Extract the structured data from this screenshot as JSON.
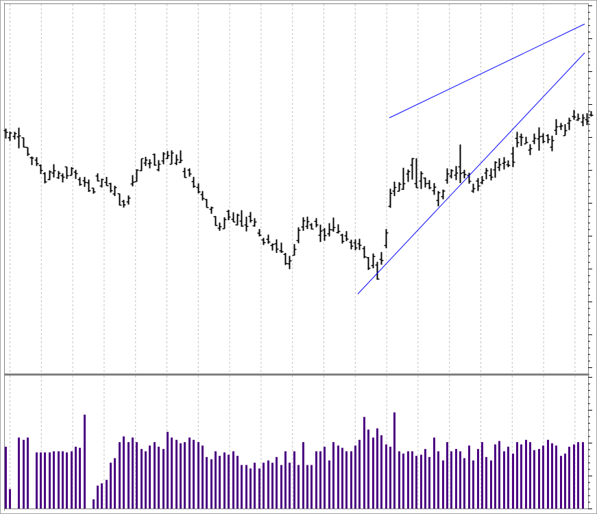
{
  "chart_data": [
    {
      "type": "ohlc",
      "title": "",
      "xlabel": "",
      "ylabel": "",
      "ylim": [
        0,
        100
      ],
      "grid": "vertical dashed",
      "colors": {
        "bars": "#000000",
        "trendlines": "#0000ff",
        "grid": "#c0c0c0",
        "frame": "#808080"
      },
      "bars": [
        [
          58.7,
          55.3,
          58.0,
          57.4
        ],
        [
          57.7,
          54.5,
          55.6,
          57.2
        ],
        [
          57.6,
          55.0,
          56.0,
          57.0
        ],
        [
          59.0,
          52.0,
          55.9,
          56.2
        ],
        [
          55.6,
          52.3,
          55.6,
          52.4
        ],
        [
          52.3,
          49.4,
          52.3,
          50.0
        ],
        [
          49.2,
          46.3,
          48.8,
          48.7
        ],
        [
          49.0,
          46.0,
          48.0,
          46.8
        ],
        [
          46.5,
          43.3,
          46.2,
          44.5
        ],
        [
          43.9,
          40.1,
          43.4,
          40.6
        ],
        [
          44.5,
          41.2,
          41.4,
          44.0
        ],
        [
          46.6,
          42.1,
          43.6,
          44.4
        ],
        [
          44.3,
          41.6,
          42.0,
          43.5
        ],
        [
          43.5,
          40.4,
          42.7,
          42.2
        ],
        [
          45.7,
          41.6,
          45.7,
          42.7
        ],
        [
          45.6,
          42.8,
          42.8,
          45.2
        ],
        [
          44.7,
          41.6,
          43.9,
          43.4
        ],
        [
          42.2,
          39.3,
          41.4,
          39.7
        ],
        [
          42.3,
          38.9,
          41.0,
          40.4
        ],
        [
          41.4,
          37.2,
          40.3,
          37.6
        ],
        [
          38.5,
          36.6,
          38.5,
          37.2
        ],
        [
          43.5,
          40.8,
          42.6,
          40.9
        ],
        [
          41.7,
          38.7,
          39.2,
          41.4
        ],
        [
          42.3,
          39.3,
          40.4,
          39.3
        ],
        [
          40.3,
          37.0,
          40.0,
          37.6
        ],
        [
          39.3,
          35.8,
          36.5,
          38.7
        ],
        [
          36.6,
          32.6,
          36.6,
          32.7
        ],
        [
          34.5,
          31.9,
          34.0,
          32.8
        ],
        [
          36.0,
          32.9,
          33.8,
          35.1
        ],
        [
          42.9,
          39.1,
          39.9,
          40.5
        ],
        [
          44.9,
          40.7,
          40.7,
          44.6
        ],
        [
          48.5,
          44.3,
          44.4,
          48.5
        ],
        [
          49.1,
          46.0,
          47.0,
          48.0
        ],
        [
          48.3,
          45.2,
          46.8,
          47.0
        ],
        [
          50.2,
          46.1,
          49.9,
          46.3
        ],
        [
          48.0,
          44.2,
          44.7,
          46.6
        ],
        [
          50.7,
          46.6,
          47.7,
          50.1
        ],
        [
          51.1,
          48.4,
          48.5,
          49.5
        ],
        [
          51.3,
          46.6,
          46.6,
          50.4
        ],
        [
          49.9,
          46.3,
          46.9,
          48.1
        ],
        [
          51.3,
          47.0,
          47.2,
          47.9
        ],
        [
          45.4,
          42.0,
          44.1,
          42.1
        ],
        [
          45.2,
          42.4,
          44.6,
          43.3
        ],
        [
          42.3,
          38.6,
          40.7,
          39.1
        ],
        [
          40.1,
          36.7,
          38.7,
          37.2
        ],
        [
          37.5,
          34.3,
          36.3,
          35.0
        ],
        [
          34.8,
          31.9,
          34.6,
          31.9
        ],
        [
          32.2,
          29.8,
          31.3,
          31.8
        ],
        [
          29.0,
          25.7,
          28.8,
          25.8
        ],
        [
          26.8,
          24.0,
          24.9,
          25.4
        ],
        [
          28.6,
          24.7,
          24.7,
          27.8
        ],
        [
          31.1,
          27.6,
          30.6,
          28.7
        ],
        [
          30.3,
          27.0,
          27.9,
          27.0
        ],
        [
          29.8,
          25.9,
          26.0,
          29.3
        ],
        [
          31.0,
          25.4,
          27.3,
          25.6
        ],
        [
          28.8,
          23.8,
          26.0,
          25.5
        ],
        [
          30.4,
          26.8,
          28.9,
          27.5
        ],
        [
          28.3,
          25.4,
          25.7,
          27.0
        ],
        [
          24.6,
          22.1,
          23.2,
          22.5
        ],
        [
          21.6,
          19.2,
          20.9,
          20.0
        ],
        [
          22.7,
          19.6,
          21.1,
          20.2
        ],
        [
          19.7,
          17.3,
          19.0,
          19.4
        ],
        [
          21.1,
          16.5,
          19.6,
          17.8
        ],
        [
          20.0,
          16.5,
          17.2,
          16.9
        ],
        [
          16.5,
          12.4,
          16.0,
          12.9
        ],
        [
          15.5,
          11.0,
          12.8,
          13.8
        ],
        [
          19.5,
          15.6,
          15.7,
          17.7
        ],
        [
          25.2,
          19.8,
          20.7,
          24.2
        ],
        [
          28.6,
          24.0,
          25.3,
          27.4
        ],
        [
          28.8,
          24.6,
          25.5,
          27.1
        ],
        [
          26.6,
          24.5,
          26.0,
          24.6
        ],
        [
          28.3,
          25.2,
          27.2,
          26.0
        ],
        [
          26.1,
          20.2,
          22.5,
          23.9
        ],
        [
          24.9,
          20.6,
          24.3,
          22.4
        ],
        [
          26.6,
          22.1,
          23.0,
          24.4
        ],
        [
          28.5,
          23.7,
          24.3,
          25.1
        ],
        [
          26.2,
          23.1,
          23.4,
          23.8
        ],
        [
          23.0,
          19.7,
          22.5,
          20.4
        ],
        [
          23.9,
          20.5,
          22.3,
          21.2
        ],
        [
          21.0,
          17.7,
          20.1,
          18.8
        ],
        [
          21.1,
          17.4,
          19.9,
          18.2
        ],
        [
          21.3,
          17.5,
          19.6,
          19.1
        ],
        [
          18.8,
          14.7,
          18.0,
          15.2
        ],
        [
          15.1,
          10.7,
          14.9,
          11.3
        ],
        [
          16.3,
          11.3,
          12.2,
          15.3
        ],
        [
          13.5,
          7.4,
          12.4,
          7.6
        ],
        [
          16.8,
          12.5,
          14.3,
          13.9
        ],
        [
          24.6,
          18.1,
          19.0,
          23.3
        ],
        [
          38.3,
          31.8,
          32.3,
          36.7
        ],
        [
          40.7,
          35.8,
          37.5,
          38.7
        ],
        [
          40.5,
          37.4,
          37.4,
          39.8
        ],
        [
          45.4,
          37.9,
          38.1,
          40.0
        ],
        [
          44.8,
          40.6,
          43.3,
          44.1
        ],
        [
          48.7,
          41.4,
          46.3,
          48.5
        ],
        [
          48.6,
          38.6,
          40.0,
          38.6
        ],
        [
          44.2,
          38.2,
          40.9,
          43.4
        ],
        [
          42.1,
          38.7,
          41.9,
          40.0
        ],
        [
          41.2,
          38.1,
          40.1,
          38.6
        ],
        [
          40.2,
          36.2,
          37.6,
          38.8
        ],
        [
          37.5,
          32.3,
          34.3,
          36.9
        ],
        [
          38.0,
          34.7,
          35.6,
          37.5
        ],
        [
          45.2,
          40.0,
          41.2,
          43.3
        ],
        [
          44.9,
          41.8,
          42.6,
          44.4
        ],
        [
          46.0,
          41.2,
          42.9,
          43.6
        ],
        [
          53.3,
          40.2,
          45.7,
          43.5
        ],
        [
          44.7,
          41.8,
          43.8,
          43.1
        ],
        [
          43.7,
          40.0,
          42.8,
          40.8
        ],
        [
          40.0,
          36.9,
          37.5,
          38.3
        ],
        [
          41.9,
          37.5,
          40.9,
          39.2
        ],
        [
          42.6,
          39.8,
          40.3,
          41.1
        ],
        [
          45.3,
          41.5,
          43.6,
          44.4
        ],
        [
          45.2,
          41.1,
          42.8,
          42.2
        ],
        [
          47.6,
          42.0,
          44.7,
          47.2
        ],
        [
          48.6,
          44.3,
          45.5,
          46.4
        ],
        [
          49.0,
          44.8,
          46.9,
          47.3
        ],
        [
          47.9,
          45.6,
          46.4,
          46.2
        ],
        [
          52.5,
          45.6,
          50.1,
          47.3
        ],
        [
          57.6,
          52.3,
          55.4,
          53.9
        ],
        [
          57.0,
          52.8,
          55.9,
          55.7
        ],
        [
          55.9,
          53.6,
          53.5,
          54.0
        ],
        [
          53.4,
          49.7,
          51.4,
          51.9
        ],
        [
          57.0,
          53.4,
          54.4,
          55.4
        ],
        [
          59.1,
          51.2,
          55.2,
          55.9
        ],
        [
          57.1,
          53.7,
          56.1,
          54.3
        ],
        [
          56.8,
          53.7,
          56.3,
          55.0
        ],
        [
          56.3,
          51.0,
          52.4,
          54.6
        ],
        [
          61.9,
          56.5,
          58.1,
          59.3
        ],
        [
          60.6,
          58.2,
          59.4,
          59.6
        ],
        [
          60.2,
          56.3,
          56.3,
          58.0
        ],
        [
          62.4,
          58.2,
          60.5,
          61.4
        ],
        [
          65.0,
          61.7,
          62.8,
          62.6
        ],
        [
          63.8,
          61.3,
          61.6,
          62.1
        ],
        [
          63.6,
          59.5,
          60.9,
          62.3
        ],
        [
          63.9,
          59.9,
          61.7,
          61.2
        ],
        [
          64.6,
          62.8,
          63.3,
          63.2
        ]
      ]
    },
    {
      "type": "bar",
      "title": "",
      "xlabel": "",
      "ylabel": "",
      "ylim": [
        0,
        100
      ],
      "colors": {
        "bars": "#4b0082"
      },
      "values": [
        54,
        17,
        0,
        62,
        60,
        62,
        0,
        49,
        49,
        49,
        49,
        50,
        50,
        50,
        49,
        50,
        54,
        53,
        82,
        0,
        8,
        20,
        22,
        25,
        40,
        44,
        58,
        63,
        58,
        62,
        58,
        52,
        50,
        55,
        58,
        54,
        52,
        67,
        62,
        60,
        57,
        58,
        62,
        60,
        58,
        55,
        45,
        43,
        50,
        46,
        49,
        47,
        50,
        46,
        38,
        38,
        35,
        40,
        35,
        40,
        42,
        40,
        45,
        38,
        50,
        40,
        50,
        38,
        58,
        38,
        38,
        50,
        50,
        54,
        42,
        58,
        55,
        53,
        50,
        50,
        55,
        60,
        80,
        69,
        62,
        70,
        64,
        56,
        54,
        84,
        50,
        48,
        50,
        50,
        46,
        47,
        52,
        45,
        62,
        50,
        42,
        58,
        50,
        52,
        50,
        44,
        55,
        42,
        52,
        58,
        45,
        42,
        56,
        59,
        50,
        54,
        48,
        58,
        56,
        60,
        58,
        51,
        52,
        55,
        60,
        57,
        55,
        46,
        48,
        54,
        56,
        58,
        58
      ]
    }
  ]
}
